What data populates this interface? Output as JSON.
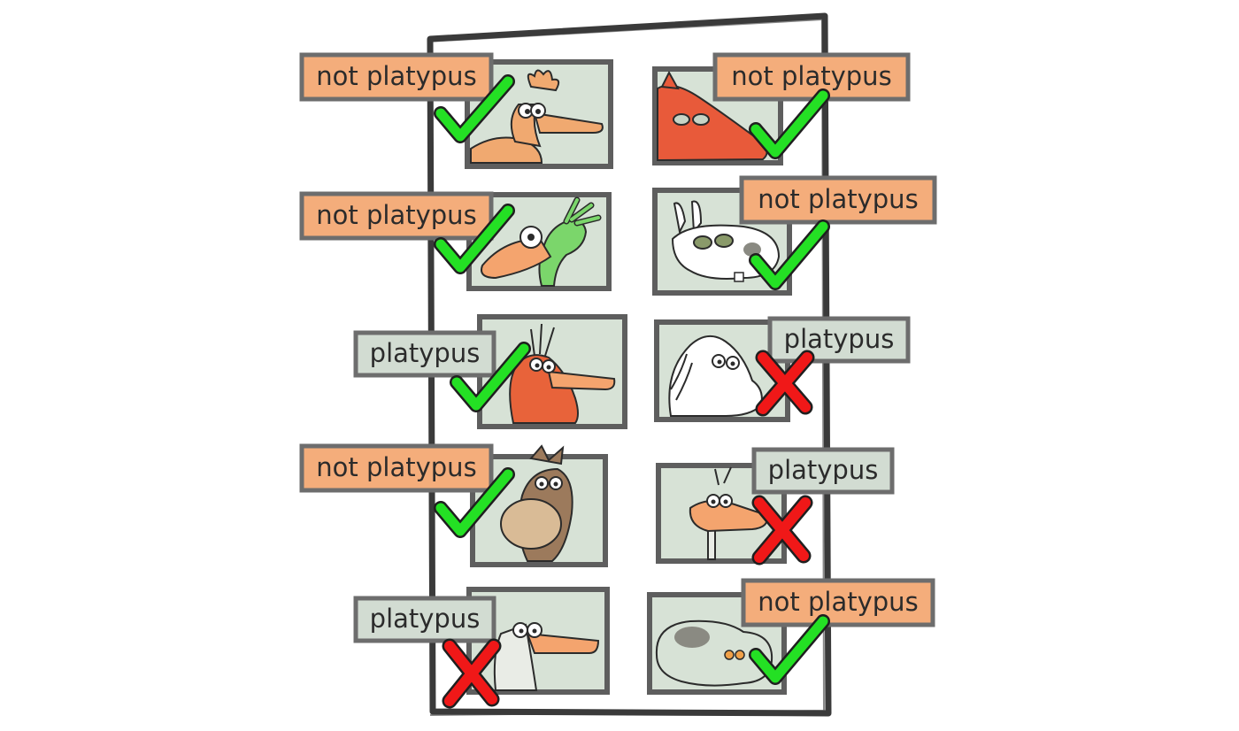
{
  "colors": {
    "not_platypus_tag": "#f4ad7b",
    "platypus_tag": "#d2dcd2",
    "tag_border": "#6d6d6d",
    "frame": "#3a3a3a",
    "photo_border": "#5e5e5e",
    "photo_bg": "#d7e2d6",
    "check": "#24e024",
    "cross": "#f01818"
  },
  "cards": [
    {
      "id": "orange-duck-crest",
      "animal": "orange crested bird",
      "label": "not platypus",
      "label_kind": "not",
      "mark": "check",
      "mark_icon": "check-mark-icon"
    },
    {
      "id": "red-anteater",
      "animal": "red anteater",
      "label": "not platypus",
      "label_kind": "not",
      "mark": "check",
      "mark_icon": "check-mark-icon"
    },
    {
      "id": "green-bird",
      "animal": "green bird",
      "label": "not platypus",
      "label_kind": "not",
      "mark": "check",
      "mark_icon": "check-mark-icon"
    },
    {
      "id": "spotted-bunny",
      "animal": "spotted bunny",
      "label": "not platypus",
      "label_kind": "not",
      "mark": "check",
      "mark_icon": "check-mark-icon"
    },
    {
      "id": "orange-platypus",
      "animal": "orange platypus",
      "label": "platypus",
      "label_kind": "yes",
      "mark": "check",
      "mark_icon": "check-mark-icon"
    },
    {
      "id": "white-horse",
      "animal": "white horse",
      "label": "platypus",
      "label_kind": "yes",
      "mark": "cross",
      "mark_icon": "cross-mark-icon"
    },
    {
      "id": "brown-moose",
      "animal": "brown moose",
      "label": "not platypus",
      "label_kind": "not",
      "mark": "check",
      "mark_icon": "check-mark-icon"
    },
    {
      "id": "duck-on-stick",
      "animal": "duck",
      "label": "platypus",
      "label_kind": "yes",
      "mark": "cross",
      "mark_icon": "cross-mark-icon"
    },
    {
      "id": "pale-duckbill",
      "animal": "pale duck-billed animal",
      "label": "platypus",
      "label_kind": "yes",
      "mark": "cross",
      "mark_icon": "cross-mark-icon"
    },
    {
      "id": "spotted-blob",
      "animal": "spotted blob creature",
      "label": "not platypus",
      "label_kind": "not",
      "mark": "check",
      "mark_icon": "check-mark-icon"
    }
  ]
}
